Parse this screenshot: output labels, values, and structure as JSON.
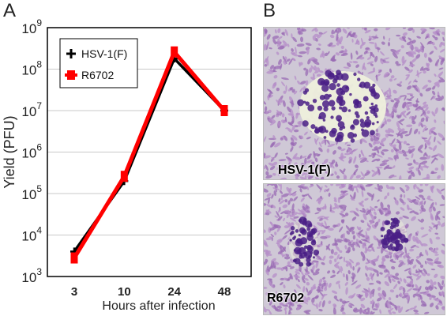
{
  "panels": {
    "a_letter": "A",
    "b_letter": "B"
  },
  "chart_data": {
    "type": "line",
    "xlabel": "Hours after infection",
    "ylabel": "Yield (PFU)",
    "categories": [
      "3",
      "10",
      "24",
      "48"
    ],
    "yscale": "log",
    "ylim": [
      1000,
      1000000000
    ],
    "y_ticks": [
      {
        "base": "10",
        "exp": "3"
      },
      {
        "base": "10",
        "exp": "4"
      },
      {
        "base": "10",
        "exp": "5"
      },
      {
        "base": "10",
        "exp": "6"
      },
      {
        "base": "10",
        "exp": "7"
      },
      {
        "base": "10",
        "exp": "8"
      },
      {
        "base": "10",
        "exp": "9"
      }
    ],
    "grid": "horizontal",
    "legend_position": "top-left",
    "series": [
      {
        "name": "HSV-1(F)",
        "color": "#000000",
        "values": [
          4000,
          200000,
          180000000,
          10000000
        ]
      },
      {
        "name": "R6702",
        "color": "#ff0000",
        "values": [
          2800,
          260000,
          260000000,
          10000000
        ]
      }
    ]
  },
  "photos": [
    {
      "label": "HSV-1(F)"
    },
    {
      "label": "R6702"
    }
  ]
}
